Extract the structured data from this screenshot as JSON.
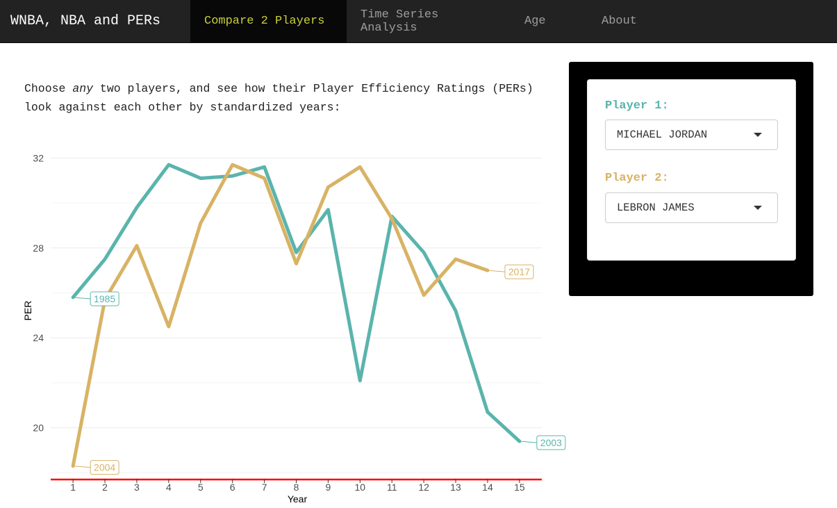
{
  "nav": {
    "brand": "WNBA, NBA and PERs",
    "tabs": [
      {
        "label": "Compare 2 Players",
        "active": true
      },
      {
        "label": "Time Series Analysis",
        "active": false
      },
      {
        "label": "Age",
        "active": false
      },
      {
        "label": "About",
        "active": false
      }
    ]
  },
  "intro": {
    "part1": "Choose ",
    "emph": "any",
    "part2": " two players, and see how their Player Efficiency Ratings (PERs) look against each other by standardized years:"
  },
  "controls": {
    "player1_label": "Player 1:",
    "player1_value": "MICHAEL JORDAN",
    "player2_label": "Player 2:",
    "player2_value": "LEBRON JAMES",
    "colors": {
      "player1": "#5ab4ac",
      "player2": "#d8b365"
    }
  },
  "chart_data": {
    "type": "line",
    "xlabel": "Year",
    "ylabel": "PER",
    "x": [
      1,
      2,
      3,
      4,
      5,
      6,
      7,
      8,
      9,
      10,
      11,
      12,
      13,
      14,
      15
    ],
    "xlim": [
      0.3,
      15.7
    ],
    "ylim": [
      17.7,
      33.0
    ],
    "yticks": [
      20,
      24,
      28,
      32
    ],
    "grid": true,
    "reference_line": {
      "y": 17.7,
      "color": "#ff0000"
    },
    "series": [
      {
        "color": "#5ab4ac",
        "x": [
          1,
          2,
          3,
          4,
          5,
          6,
          7,
          8,
          9,
          10,
          11,
          12,
          13,
          14,
          15
        ],
        "values": [
          25.8,
          27.5,
          29.8,
          31.7,
          31.1,
          31.2,
          31.6,
          27.8,
          29.7,
          22.1,
          29.4,
          27.8,
          25.2,
          20.7,
          19.4
        ],
        "start_label": "1985",
        "end_label": "2003"
      },
      {
        "color": "#d8b365",
        "x": [
          1,
          2,
          3,
          4,
          5,
          6,
          7,
          8,
          9,
          10,
          11,
          12,
          13,
          14
        ],
        "values": [
          18.3,
          25.7,
          28.1,
          24.5,
          29.1,
          31.7,
          31.1,
          27.3,
          30.7,
          31.6,
          29.3,
          25.9,
          27.5,
          27.0
        ],
        "start_label": "2004",
        "end_label": "2017"
      }
    ]
  }
}
